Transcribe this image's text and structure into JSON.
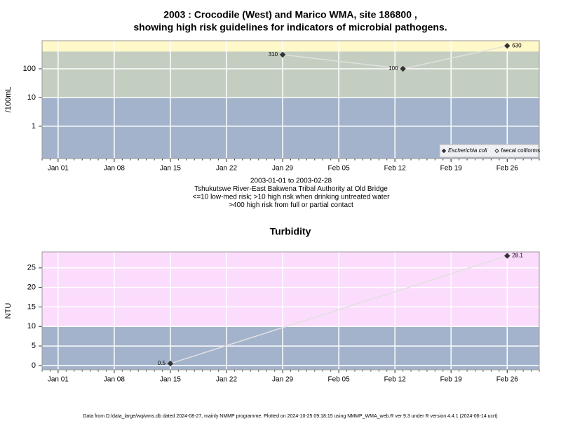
{
  "chart_data": [
    {
      "type": "line",
      "title": [
        "2003 : Crocodile (West) and Marico WMA, site 186800 ,",
        "showing high risk guidelines for indicators of microbial pathogens."
      ],
      "ylabel": "/100mL",
      "log_scale": true,
      "ylim": [
        0.075,
        950
      ],
      "yticks": [
        1,
        10,
        100
      ],
      "xlim": [
        "2002-12-30",
        "2003-03-02"
      ],
      "xticks": [
        {
          "value": "2003-01-01",
          "label": "Jan 01"
        },
        {
          "value": "2003-01-08",
          "label": "Jan 08"
        },
        {
          "value": "2003-01-15",
          "label": "Jan 15"
        },
        {
          "value": "2003-01-22",
          "label": "Jan 22"
        },
        {
          "value": "2003-01-29",
          "label": "Jan 29"
        },
        {
          "value": "2003-02-05",
          "label": "Feb 05"
        },
        {
          "value": "2003-02-12",
          "label": "Feb 12"
        },
        {
          "value": "2003-02-19",
          "label": "Feb 19"
        },
        {
          "value": "2003-02-26",
          "label": "Feb 26"
        }
      ],
      "thresholds": [
        10,
        400
      ],
      "band_colors": [
        "#a3b3cc",
        "#c4cec0",
        "#fff8c8"
      ],
      "grid": true,
      "legend": "bottom right",
      "series": [
        {
          "name": "Escherichia coli",
          "color": "#333333",
          "marker": "filled",
          "font_style": "italic",
          "x": [
            "2003-01-29",
            "2003-02-13",
            "2003-02-26"
          ],
          "values": [
            310,
            100,
            630
          ]
        },
        {
          "name": "faecal coliforms",
          "color": "#333333",
          "marker": "open",
          "font_style": "normal",
          "x": [],
          "values": []
        }
      ],
      "notes": [
        "2003-01-01 to 2003-02-28",
        "Tshukutswe River-East Bakwena Tribal Authority at Old Bridge",
        "<=10 low-med risk; >10 high risk when drinking untreated water",
        ">400 high risk from full or partial contact"
      ]
    },
    {
      "type": "line",
      "title": [
        "Turbidity"
      ],
      "ylabel": "NTU",
      "log_scale": false,
      "ylim": [
        -1.1,
        29.1
      ],
      "yticks": [
        0,
        5,
        10,
        15,
        20,
        25
      ],
      "xlim": [
        "2002-12-30",
        "2003-03-02"
      ],
      "xticks": [
        {
          "value": "2003-01-01",
          "label": "Jan 01"
        },
        {
          "value": "2003-01-08",
          "label": "Jan 08"
        },
        {
          "value": "2003-01-15",
          "label": "Jan 15"
        },
        {
          "value": "2003-01-22",
          "label": "Jan 22"
        },
        {
          "value": "2003-01-29",
          "label": "Jan 29"
        },
        {
          "value": "2003-02-05",
          "label": "Feb 05"
        },
        {
          "value": "2003-02-12",
          "label": "Feb 12"
        },
        {
          "value": "2003-02-19",
          "label": "Feb 19"
        },
        {
          "value": "2003-02-26",
          "label": "Feb 26"
        }
      ],
      "thresholds": [
        10
      ],
      "band_colors": [
        "#a3b3cc",
        "#fcdcfc"
      ],
      "grid": true,
      "series": [
        {
          "color": "#333333",
          "marker": "filled",
          "x": [
            "2003-01-15",
            "2003-02-26"
          ],
          "values": [
            0.5,
            28.1
          ]
        }
      ]
    }
  ],
  "footer": "Data from D:/data_large/wq/wms.db dated 2024-08-27, mainly NMMP programme. Plotted on 2024-10-25 09:18:15 using NMMP_WMA_web.R ver 9.3 under R version 4.4.1 (2024-06-14 ucrt)"
}
